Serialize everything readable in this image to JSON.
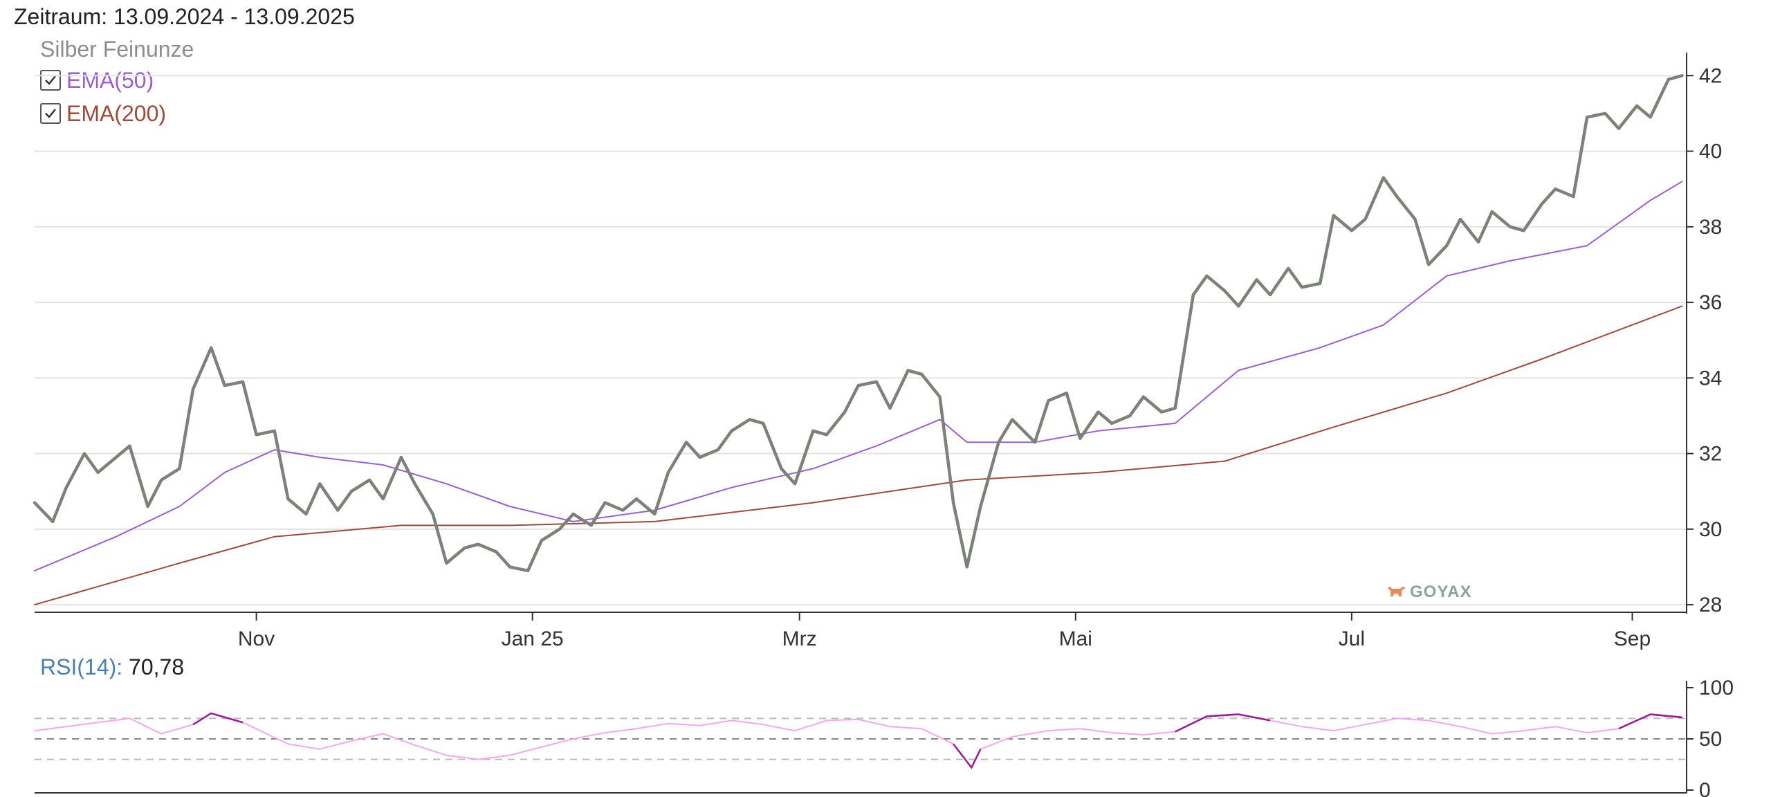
{
  "header": {
    "period": "Zeitraum: 13.09.2024 - 13.09.2025"
  },
  "legend": {
    "series_name": "Silber Feinunze",
    "ema50_label": "EMA(50)",
    "ema200_label": "EMA(200)",
    "ema50_checked": true,
    "ema200_checked": true
  },
  "rsi": {
    "name": "RSI(14):",
    "value": "70,78"
  },
  "logo": {
    "text": "GOYAX"
  },
  "colors": {
    "price": "#7b8278",
    "ema50": "#9b5fd0",
    "ema200": "#a04a3a",
    "rsi": "#f4a7f0",
    "rsi_extreme": "#9b1a9b",
    "grid": "#e3e3e3"
  },
  "chart_data": [
    {
      "type": "line",
      "title": "Silber Feinunze",
      "x_range": [
        "2024-09-13",
        "2025-09-13"
      ],
      "xticks": [
        {
          "date": "2024-11-01",
          "label": "Nov"
        },
        {
          "date": "2025-01-01",
          "label": "Jan 25"
        },
        {
          "date": "2025-03-01",
          "label": "Mrz"
        },
        {
          "date": "2025-05-01",
          "label": "Mai"
        },
        {
          "date": "2025-07-01",
          "label": "Jul"
        },
        {
          "date": "2025-09-01",
          "label": "Sep"
        }
      ],
      "ylim": [
        27.8,
        42.5
      ],
      "yticks": [
        28,
        30,
        32,
        34,
        36,
        38,
        40,
        42
      ],
      "y_axis_position": "right",
      "grid": true,
      "series": [
        {
          "name": "Silber Feinunze",
          "x": [
            "2024-09-13",
            "2024-09-17",
            "2024-09-20",
            "2024-09-24",
            "2024-09-27",
            "2024-10-01",
            "2024-10-04",
            "2024-10-08",
            "2024-10-11",
            "2024-10-15",
            "2024-10-18",
            "2024-10-22",
            "2024-10-25",
            "2024-10-29",
            "2024-11-01",
            "2024-11-05",
            "2024-11-08",
            "2024-11-12",
            "2024-11-15",
            "2024-11-19",
            "2024-11-22",
            "2024-11-26",
            "2024-11-29",
            "2024-12-03",
            "2024-12-06",
            "2024-12-10",
            "2024-12-13",
            "2024-12-17",
            "2024-12-20",
            "2024-12-24",
            "2024-12-27",
            "2024-12-31",
            "2025-01-03",
            "2025-01-07",
            "2025-01-10",
            "2025-01-14",
            "2025-01-17",
            "2025-01-21",
            "2025-01-24",
            "2025-01-28",
            "2025-01-31",
            "2025-02-04",
            "2025-02-07",
            "2025-02-11",
            "2025-02-14",
            "2025-02-18",
            "2025-02-21",
            "2025-02-25",
            "2025-02-28",
            "2025-03-04",
            "2025-03-07",
            "2025-03-11",
            "2025-03-14",
            "2025-03-18",
            "2025-03-21",
            "2025-03-25",
            "2025-03-28",
            "2025-04-01",
            "2025-04-04",
            "2025-04-07",
            "2025-04-10",
            "2025-04-14",
            "2025-04-17",
            "2025-04-22",
            "2025-04-25",
            "2025-04-29",
            "2025-05-02",
            "2025-05-06",
            "2025-05-09",
            "2025-05-13",
            "2025-05-16",
            "2025-05-20",
            "2025-05-23",
            "2025-05-27",
            "2025-05-30",
            "2025-06-03",
            "2025-06-06",
            "2025-06-10",
            "2025-06-13",
            "2025-06-17",
            "2025-06-20",
            "2025-06-24",
            "2025-06-27",
            "2025-07-01",
            "2025-07-04",
            "2025-07-08",
            "2025-07-11",
            "2025-07-15",
            "2025-07-18",
            "2025-07-22",
            "2025-07-25",
            "2025-07-29",
            "2025-08-01",
            "2025-08-05",
            "2025-08-08",
            "2025-08-12",
            "2025-08-15",
            "2025-08-19",
            "2025-08-22",
            "2025-08-26",
            "2025-08-29",
            "2025-09-02",
            "2025-09-05",
            "2025-09-09",
            "2025-09-12"
          ],
          "values": [
            30.7,
            30.2,
            31.1,
            32.0,
            31.5,
            31.9,
            32.2,
            30.6,
            31.3,
            31.6,
            33.7,
            34.8,
            33.8,
            33.9,
            32.5,
            32.6,
            30.8,
            30.4,
            31.2,
            30.5,
            31.0,
            31.3,
            30.8,
            31.9,
            31.2,
            30.4,
            29.1,
            29.5,
            29.6,
            29.4,
            29.0,
            28.9,
            29.7,
            30.0,
            30.4,
            30.1,
            30.7,
            30.5,
            30.8,
            30.4,
            31.5,
            32.3,
            31.9,
            32.1,
            32.6,
            32.9,
            32.8,
            31.6,
            31.2,
            32.6,
            32.5,
            33.1,
            33.8,
            33.9,
            33.2,
            34.2,
            34.1,
            33.5,
            30.7,
            29.0,
            30.6,
            32.3,
            32.9,
            32.3,
            33.4,
            33.6,
            32.4,
            33.1,
            32.8,
            33.0,
            33.5,
            33.1,
            33.2,
            36.2,
            36.7,
            36.3,
            35.9,
            36.6,
            36.2,
            36.9,
            36.4,
            36.5,
            38.3,
            37.9,
            38.2,
            39.3,
            38.8,
            38.2,
            37.0,
            37.5,
            38.2,
            37.6,
            38.4,
            38.0,
            37.9,
            38.6,
            39.0,
            38.8,
            40.9,
            41.0,
            40.6,
            41.2,
            40.9,
            41.9,
            42.0
          ]
        },
        {
          "name": "EMA(50)",
          "x": [
            "2024-09-13",
            "2024-10-01",
            "2024-10-15",
            "2024-10-25",
            "2024-11-05",
            "2024-11-15",
            "2024-11-29",
            "2024-12-13",
            "2024-12-27",
            "2025-01-10",
            "2025-01-28",
            "2025-02-14",
            "2025-03-04",
            "2025-03-18",
            "2025-04-01",
            "2025-04-07",
            "2025-04-22",
            "2025-05-06",
            "2025-05-23",
            "2025-06-06",
            "2025-06-24",
            "2025-07-08",
            "2025-07-22",
            "2025-08-05",
            "2025-08-22",
            "2025-09-05",
            "2025-09-12"
          ],
          "values": [
            28.9,
            29.8,
            30.6,
            31.5,
            32.1,
            31.9,
            31.7,
            31.2,
            30.6,
            30.2,
            30.5,
            31.1,
            31.6,
            32.2,
            32.9,
            32.3,
            32.3,
            32.6,
            32.8,
            34.2,
            34.8,
            35.4,
            36.7,
            37.1,
            37.5,
            38.7,
            39.2
          ]
        },
        {
          "name": "EMA(200)",
          "x": [
            "2024-09-13",
            "2024-10-15",
            "2024-11-05",
            "2024-12-03",
            "2024-12-27",
            "2025-01-28",
            "2025-03-04",
            "2025-04-07",
            "2025-05-06",
            "2025-06-03",
            "2025-06-27",
            "2025-07-22",
            "2025-08-12",
            "2025-09-12"
          ],
          "values": [
            28.0,
            29.1,
            29.8,
            30.1,
            30.1,
            30.2,
            30.7,
            31.3,
            31.5,
            31.8,
            32.7,
            33.6,
            34.5,
            35.9
          ]
        }
      ]
    },
    {
      "type": "line",
      "title": "RSI(14)",
      "x_range": [
        "2024-09-13",
        "2025-09-13"
      ],
      "ylim": [
        0,
        100
      ],
      "yticks": [
        0,
        50,
        100
      ],
      "y_axis_position": "right",
      "reference_lines": [
        30,
        50,
        70
      ],
      "series": [
        {
          "name": "RSI(14)",
          "x": [
            "2024-09-13",
            "2024-09-20",
            "2024-09-27",
            "2024-10-04",
            "2024-10-11",
            "2024-10-18",
            "2024-10-22",
            "2024-10-29",
            "2024-11-08",
            "2024-11-15",
            "2024-11-22",
            "2024-11-29",
            "2024-12-06",
            "2024-12-13",
            "2024-12-20",
            "2024-12-27",
            "2025-01-03",
            "2025-01-10",
            "2025-01-17",
            "2025-01-24",
            "2025-01-31",
            "2025-02-07",
            "2025-02-14",
            "2025-02-21",
            "2025-02-28",
            "2025-03-07",
            "2025-03-14",
            "2025-03-21",
            "2025-03-28",
            "2025-04-04",
            "2025-04-08",
            "2025-04-10",
            "2025-04-17",
            "2025-04-25",
            "2025-05-02",
            "2025-05-09",
            "2025-05-16",
            "2025-05-23",
            "2025-05-30",
            "2025-06-06",
            "2025-06-13",
            "2025-06-20",
            "2025-06-27",
            "2025-07-04",
            "2025-07-11",
            "2025-07-18",
            "2025-07-25",
            "2025-08-01",
            "2025-08-08",
            "2025-08-15",
            "2025-08-22",
            "2025-08-29",
            "2025-09-05",
            "2025-09-12"
          ],
          "values": [
            58,
            62,
            66,
            70,
            55,
            64,
            75,
            66,
            45,
            40,
            48,
            55,
            44,
            34,
            30,
            34,
            42,
            50,
            56,
            60,
            65,
            63,
            68,
            64,
            58,
            68,
            69,
            62,
            60,
            45,
            22,
            40,
            52,
            58,
            60,
            56,
            54,
            57,
            72,
            74,
            68,
            62,
            58,
            64,
            70,
            68,
            62,
            55,
            58,
            62,
            56,
            60,
            74,
            71
          ]
        }
      ]
    }
  ]
}
